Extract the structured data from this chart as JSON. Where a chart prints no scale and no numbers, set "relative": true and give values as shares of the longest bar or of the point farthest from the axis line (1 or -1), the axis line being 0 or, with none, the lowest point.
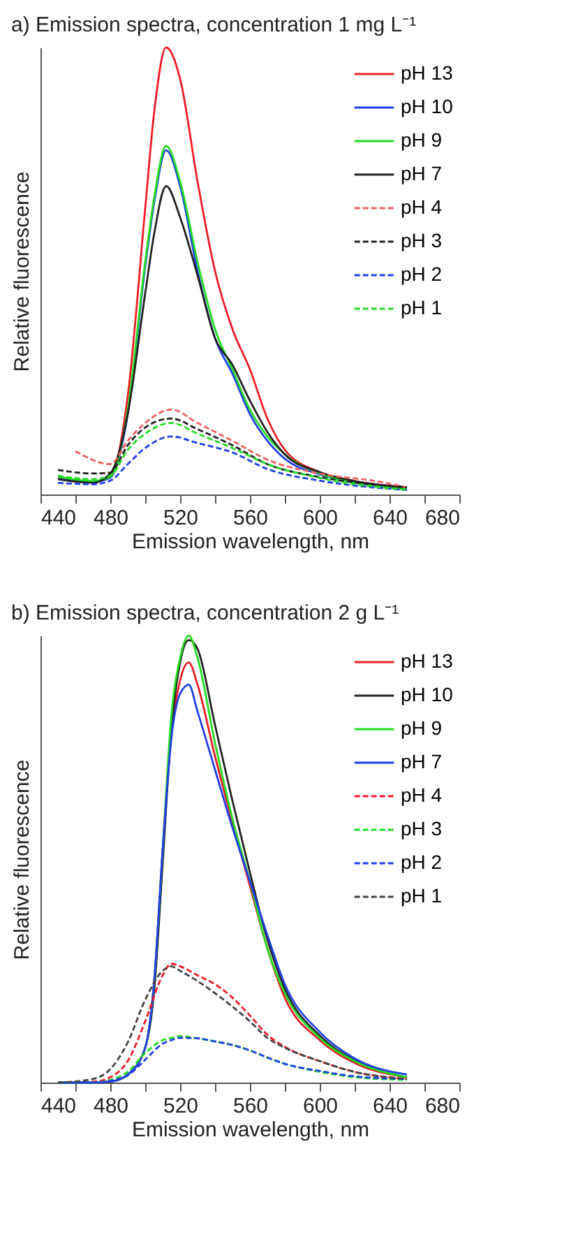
{
  "chart_data": [
    {
      "type": "line",
      "title": "a) Emission spectra, concentration 1 mg L⁻¹",
      "xlabel": "Emission wavelength, nm",
      "ylabel": "Relative fluorescence",
      "relative": true,
      "legend": "top right",
      "xlim": [
        440,
        680
      ],
      "xticks": [
        440,
        {
          "value": 460,
          "label": null
        },
        480,
        {
          "value": 500,
          "label": null
        },
        520,
        {
          "value": 540,
          "label": null
        },
        560,
        {
          "value": 580,
          "label": null
        },
        600,
        {
          "value": 620,
          "label": null
        },
        640,
        {
          "value": 660,
          "label": null
        },
        680
      ],
      "x": [
        450,
        470,
        480,
        490,
        500,
        505,
        512,
        520,
        530,
        540,
        550,
        560,
        570,
        580,
        600,
        620,
        650
      ],
      "series": [
        {
          "name": "pH 13",
          "color": "#ee1c25",
          "line_style": "solid",
          "values": [
            0.037,
            0.028,
            0.04,
            0.22,
            0.64,
            0.85,
            1,
            0.93,
            0.7,
            0.5,
            0.37,
            0.28,
            0.17,
            0.1,
            0.05,
            0.03,
            0.016
          ]
        },
        {
          "name": "pH 10",
          "color": "#1f3fe6",
          "line_style": "solid",
          "values": [
            0.035,
            0.028,
            0.038,
            0.18,
            0.51,
            0.65,
            0.77,
            0.69,
            0.5,
            0.35,
            0.27,
            0.18,
            0.12,
            0.08,
            0.045,
            0.027,
            0.012
          ]
        },
        {
          "name": "pH 9",
          "color": "#22dd22",
          "line_style": "solid",
          "values": [
            0.04,
            0.03,
            0.04,
            0.19,
            0.52,
            0.66,
            0.78,
            0.7,
            0.52,
            0.37,
            0.28,
            0.19,
            0.13,
            0.09,
            0.047,
            0.028,
            0.013
          ]
        },
        {
          "name": "pH 7",
          "color": "#222222",
          "line_style": "solid",
          "values": [
            0.034,
            0.026,
            0.047,
            0.18,
            0.45,
            0.58,
            0.69,
            0.62,
            0.49,
            0.35,
            0.29,
            0.21,
            0.14,
            0.09,
            0.05,
            0.03,
            0.016
          ]
        },
        {
          "name": "pH 4",
          "color": "#f06060",
          "line_style": "dashed",
          "x": [
            460,
            480,
            490,
            500,
            515,
            530,
            550,
            570,
            600,
            635,
            650
          ],
          "values": [
            0.097,
            0.068,
            0.12,
            0.16,
            0.19,
            0.16,
            0.12,
            0.078,
            0.047,
            0.028,
            0.016
          ]
        },
        {
          "name": "pH 3",
          "color": "#222222",
          "line_style": "dashed",
          "x": [
            450,
            470,
            480,
            490,
            500,
            515,
            530,
            550,
            570,
            600,
            650
          ],
          "values": [
            0.055,
            0.047,
            0.049,
            0.11,
            0.15,
            0.17,
            0.146,
            0.11,
            0.068,
            0.039,
            0.016
          ]
        },
        {
          "name": "pH 2",
          "color": "#1f3fe6",
          "line_style": "dashed",
          "x": [
            450,
            470,
            480,
            490,
            500,
            515,
            530,
            550,
            570,
            600,
            650
          ],
          "values": [
            0.026,
            0.023,
            0.031,
            0.068,
            0.104,
            0.13,
            0.115,
            0.094,
            0.057,
            0.031,
            0.01
          ]
        },
        {
          "name": "pH 1",
          "color": "#22dd22",
          "line_style": "dashed",
          "x": [
            450,
            470,
            480,
            490,
            500,
            515,
            530,
            550,
            570,
            600,
            650
          ],
          "values": [
            0.042,
            0.034,
            0.042,
            0.1,
            0.136,
            0.16,
            0.136,
            0.104,
            0.068,
            0.037,
            0.01
          ]
        }
      ]
    },
    {
      "type": "line",
      "title": "b) Emission spectra, concentration 2 g L⁻¹",
      "xlabel": "Emission wavelength, nm",
      "ylabel": "Relative fluorescence",
      "relative": true,
      "legend": "top right",
      "xlim": [
        440,
        680
      ],
      "xticks": [
        440,
        {
          "value": 460,
          "label": null
        },
        480,
        {
          "value": 500,
          "label": null
        },
        520,
        {
          "value": 540,
          "label": null
        },
        560,
        {
          "value": 580,
          "label": null
        },
        600,
        {
          "value": 620,
          "label": null
        },
        640,
        {
          "value": 660,
          "label": null
        },
        680
      ],
      "x": [
        450,
        470,
        480,
        490,
        500,
        505,
        510,
        515,
        520,
        525,
        530,
        540,
        550,
        560,
        570,
        580,
        600,
        620,
        650
      ],
      "series": [
        {
          "name": "pH 13",
          "color": "#ee1c25",
          "line_style": "solid",
          "values": [
            0,
            0,
            0.002,
            0.018,
            0.078,
            0.22,
            0.52,
            0.78,
            0.9,
            0.94,
            0.89,
            0.73,
            0.58,
            0.44,
            0.3,
            0.19,
            0.095,
            0.044,
            0.012
          ]
        },
        {
          "name": "pH 10",
          "color": "#222222",
          "line_style": "solid",
          "values": [
            0,
            0,
            0.002,
            0.018,
            0.078,
            0.2,
            0.49,
            0.79,
            0.94,
            0.99,
            0.97,
            0.8,
            0.63,
            0.47,
            0.32,
            0.21,
            0.105,
            0.05,
            0.012
          ]
        },
        {
          "name": "pH 9",
          "color": "#22dd22",
          "line_style": "solid",
          "values": [
            0,
            0,
            0.002,
            0.018,
            0.078,
            0.22,
            0.52,
            0.82,
            0.95,
            1,
            0.95,
            0.76,
            0.59,
            0.45,
            0.3,
            0.2,
            0.1,
            0.048,
            0.012
          ]
        },
        {
          "name": "pH 7",
          "color": "#1f3fe6",
          "line_style": "solid",
          "values": [
            0,
            0,
            0.002,
            0.018,
            0.078,
            0.22,
            0.52,
            0.77,
            0.87,
            0.89,
            0.83,
            0.7,
            0.57,
            0.45,
            0.33,
            0.22,
            0.113,
            0.054,
            0.018
          ]
        },
        {
          "name": "pH 4",
          "color": "#ee1c25",
          "line_style": "dashed",
          "x": [
            450,
            470,
            480,
            490,
            500,
            510,
            515,
            520,
            530,
            540,
            550,
            560,
            570,
            580,
            600,
            620,
            650
          ],
          "values": [
            0,
            0.002,
            0.012,
            0.048,
            0.137,
            0.24,
            0.266,
            0.26,
            0.24,
            0.22,
            0.19,
            0.15,
            0.107,
            0.08,
            0.048,
            0.024,
            0.008
          ]
        },
        {
          "name": "pH 3",
          "color": "#22dd22",
          "line_style": "dashed",
          "x": [
            450,
            470,
            480,
            490,
            500,
            510,
            515,
            520,
            530,
            540,
            550,
            560,
            570,
            580,
            600,
            620,
            650
          ],
          "values": [
            0,
            0,
            0.006,
            0.024,
            0.066,
            0.095,
            0.1,
            0.104,
            0.099,
            0.092,
            0.084,
            0.072,
            0.056,
            0.042,
            0.024,
            0.012,
            0.006
          ]
        },
        {
          "name": "pH 2",
          "color": "#1f3fe6",
          "line_style": "dashed",
          "x": [
            450,
            470,
            480,
            490,
            500,
            510,
            515,
            520,
            530,
            540,
            550,
            560,
            570,
            580,
            600,
            620,
            650
          ],
          "values": [
            0,
            0,
            0.004,
            0.016,
            0.051,
            0.087,
            0.095,
            0.1,
            0.099,
            0.092,
            0.084,
            0.072,
            0.056,
            0.042,
            0.026,
            0.014,
            0.008
          ]
        },
        {
          "name": "pH 1",
          "color": "#444444",
          "line_style": "dashed",
          "x": [
            450,
            470,
            480,
            490,
            500,
            510,
            515,
            520,
            530,
            540,
            550,
            560,
            570,
            580,
            600,
            620,
            650
          ],
          "values": [
            0,
            0.008,
            0.03,
            0.09,
            0.185,
            0.25,
            0.26,
            0.25,
            0.227,
            0.2,
            0.17,
            0.137,
            0.1,
            0.078,
            0.048,
            0.024,
            0.008
          ]
        }
      ]
    }
  ]
}
